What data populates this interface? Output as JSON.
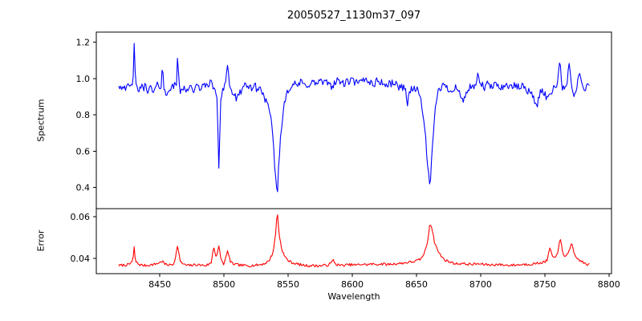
{
  "chart": {
    "title": "20050527_1130m37_097",
    "xlabel": "Wavelength",
    "background_color": "#ffffff",
    "axis_color": "#000000"
  },
  "chart_data": [
    {
      "type": "line",
      "name": "Spectrum",
      "ylabel": "Spectrum",
      "color": "#0000ff",
      "legend": "none",
      "grid": false,
      "xlim": [
        8400.5,
        8802
      ],
      "ylim": [
        0.284,
        1.256
      ],
      "xticks": [
        "8450",
        "8500",
        "8550",
        "8600",
        "8650",
        "8700",
        "8750",
        "8800"
      ],
      "yticks": [
        "0.4",
        "0.6",
        "0.8",
        "1.0",
        "1.2"
      ],
      "x_start": 8418,
      "x_end": 8785,
      "sample_step": 0.75,
      "noise": {
        "seed": 42,
        "amplitude": 0.022
      },
      "anchors": [
        [
          8418,
          0.97
        ],
        [
          8420,
          0.95
        ],
        [
          8422,
          0.97
        ],
        [
          8424,
          0.94
        ],
        [
          8426,
          0.96
        ],
        [
          8428,
          0.95
        ],
        [
          8429,
          0.97
        ],
        [
          8430,
          1.21
        ],
        [
          8431,
          0.96
        ],
        [
          8433,
          0.93
        ],
        [
          8435,
          0.96
        ],
        [
          8437,
          0.94
        ],
        [
          8439,
          0.97
        ],
        [
          8441,
          0.93
        ],
        [
          8443,
          0.95
        ],
        [
          8445,
          0.92
        ],
        [
          8447,
          0.95
        ],
        [
          8449,
          0.97
        ],
        [
          8451,
          0.95
        ],
        [
          8452,
          1.1
        ],
        [
          8453,
          0.94
        ],
        [
          8455,
          0.91
        ],
        [
          8457,
          0.95
        ],
        [
          8459,
          0.94
        ],
        [
          8461,
          0.96
        ],
        [
          8463,
          0.97
        ],
        [
          8464,
          1.17
        ],
        [
          8465,
          0.95
        ],
        [
          8467,
          0.92
        ],
        [
          8469,
          0.95
        ],
        [
          8471,
          0.94
        ],
        [
          8473,
          0.96
        ],
        [
          8475,
          0.95
        ],
        [
          8477,
          0.93
        ],
        [
          8479,
          0.96
        ],
        [
          8481,
          0.94
        ],
        [
          8483,
          0.97
        ],
        [
          8485,
          0.95
        ],
        [
          8487,
          0.97
        ],
        [
          8489,
          0.98
        ],
        [
          8491,
          0.96
        ],
        [
          8493,
          0.95
        ],
        [
          8494.5,
          0.88
        ],
        [
          8496,
          0.52
        ],
        [
          8497.5,
          0.88
        ],
        [
          8499,
          0.95
        ],
        [
          8501,
          0.97
        ],
        [
          8503,
          1.1
        ],
        [
          8504,
          0.96
        ],
        [
          8506,
          0.93
        ],
        [
          8508,
          0.91
        ],
        [
          8510,
          0.88
        ],
        [
          8512,
          0.91
        ],
        [
          8514,
          0.95
        ],
        [
          8516,
          0.96
        ],
        [
          8518,
          0.94
        ],
        [
          8520,
          0.96
        ],
        [
          8522,
          0.95
        ],
        [
          8524,
          0.96
        ],
        [
          8526,
          0.94
        ],
        [
          8528,
          0.95
        ],
        [
          8530,
          0.92
        ],
        [
          8532,
          0.89
        ],
        [
          8534,
          0.85
        ],
        [
          8536,
          0.8
        ],
        [
          8538,
          0.68
        ],
        [
          8540,
          0.48
        ],
        [
          8541.5,
          0.35
        ],
        [
          8543,
          0.58
        ],
        [
          8545,
          0.74
        ],
        [
          8547,
          0.87
        ],
        [
          8549,
          0.93
        ],
        [
          8551,
          0.95
        ],
        [
          8554,
          0.97
        ],
        [
          8557,
          0.96
        ],
        [
          8560,
          0.98
        ],
        [
          8563,
          0.96
        ],
        [
          8566,
          0.97
        ],
        [
          8569,
          0.98
        ],
        [
          8572,
          0.97
        ],
        [
          8575,
          0.99
        ],
        [
          8578,
          0.97
        ],
        [
          8581,
          0.98
        ],
        [
          8584,
          0.96
        ],
        [
          8587,
          0.98
        ],
        [
          8590,
          0.99
        ],
        [
          8593,
          0.97
        ],
        [
          8596,
          0.98
        ],
        [
          8599,
          0.99
        ],
        [
          8602,
          0.98
        ],
        [
          8605,
          0.97
        ],
        [
          8608,
          0.99
        ],
        [
          8611,
          1.0
        ],
        [
          8614,
          0.98
        ],
        [
          8617,
          0.97
        ],
        [
          8620,
          0.99
        ],
        [
          8623,
          0.98
        ],
        [
          8626,
          0.96
        ],
        [
          8629,
          0.97
        ],
        [
          8632,
          0.98
        ],
        [
          8635,
          0.96
        ],
        [
          8638,
          0.95
        ],
        [
          8641,
          0.96
        ],
        [
          8643,
          0.86
        ],
        [
          8645,
          0.94
        ],
        [
          8648,
          0.95
        ],
        [
          8651,
          0.93
        ],
        [
          8653,
          0.9
        ],
        [
          8655,
          0.82
        ],
        [
          8657,
          0.68
        ],
        [
          8659,
          0.5
        ],
        [
          8660.5,
          0.4
        ],
        [
          8662,
          0.56
        ],
        [
          8664,
          0.77
        ],
        [
          8666,
          0.91
        ],
        [
          8668,
          0.95
        ],
        [
          8671,
          0.96
        ],
        [
          8674,
          0.95
        ],
        [
          8677,
          0.93
        ],
        [
          8680,
          0.96
        ],
        [
          8683,
          0.93
        ],
        [
          8686,
          0.87
        ],
        [
          8689,
          0.93
        ],
        [
          8692,
          0.95
        ],
        [
          8695,
          0.94
        ],
        [
          8698,
          1.02
        ],
        [
          8700,
          0.97
        ],
        [
          8703,
          0.95
        ],
        [
          8706,
          0.97
        ],
        [
          8709,
          0.95
        ],
        [
          8712,
          0.97
        ],
        [
          8715,
          0.96
        ],
        [
          8718,
          0.95
        ],
        [
          8721,
          0.97
        ],
        [
          8724,
          0.95
        ],
        [
          8727,
          0.96
        ],
        [
          8730,
          0.95
        ],
        [
          8733,
          0.96
        ],
        [
          8736,
          0.94
        ],
        [
          8739,
          0.92
        ],
        [
          8742,
          0.88
        ],
        [
          8744,
          0.85
        ],
        [
          8746,
          0.91
        ],
        [
          8748,
          0.94
        ],
        [
          8750,
          0.92
        ],
        [
          8752,
          0.88
        ],
        [
          8754,
          0.92
        ],
        [
          8756,
          0.94
        ],
        [
          8758,
          0.96
        ],
        [
          8760,
          0.98
        ],
        [
          8762,
          1.13
        ],
        [
          8763,
          0.97
        ],
        [
          8765,
          0.93
        ],
        [
          8767,
          0.95
        ],
        [
          8769,
          1.1
        ],
        [
          8771,
          0.94
        ],
        [
          8773,
          0.91
        ],
        [
          8775,
          0.93
        ],
        [
          8777,
          1.06
        ],
        [
          8779,
          0.95
        ],
        [
          8781,
          0.93
        ],
        [
          8783,
          0.96
        ],
        [
          8785,
          0.95
        ]
      ]
    },
    {
      "type": "line",
      "name": "Error",
      "ylabel": "Error",
      "color": "#ff0000",
      "legend": "none",
      "grid": false,
      "xlim": [
        8400.5,
        8802
      ],
      "ylim": [
        0.0327,
        0.0638
      ],
      "xticks": [
        "8450",
        "8500",
        "8550",
        "8600",
        "8650",
        "8700",
        "8750",
        "8800"
      ],
      "yticks": [
        "0.04",
        "0.06"
      ],
      "x_start": 8418,
      "x_end": 8785,
      "sample_step": 0.75,
      "noise": {
        "seed": 7,
        "amplitude": 0.0006
      },
      "anchors": [
        [
          8418,
          0.0366
        ],
        [
          8422,
          0.0368
        ],
        [
          8426,
          0.037
        ],
        [
          8429,
          0.039
        ],
        [
          8430,
          0.0452
        ],
        [
          8431,
          0.0385
        ],
        [
          8434,
          0.037
        ],
        [
          8438,
          0.0366
        ],
        [
          8442,
          0.0368
        ],
        [
          8446,
          0.0372
        ],
        [
          8450,
          0.038
        ],
        [
          8452,
          0.0388
        ],
        [
          8454,
          0.0372
        ],
        [
          8458,
          0.0368
        ],
        [
          8461,
          0.0374
        ],
        [
          8464,
          0.0462
        ],
        [
          8466,
          0.0382
        ],
        [
          8470,
          0.0368
        ],
        [
          8474,
          0.0366
        ],
        [
          8478,
          0.037
        ],
        [
          8482,
          0.0368
        ],
        [
          8486,
          0.0366
        ],
        [
          8490,
          0.0378
        ],
        [
          8492,
          0.0458
        ],
        [
          8494,
          0.0405
        ],
        [
          8496,
          0.0455
        ],
        [
          8498,
          0.039
        ],
        [
          8500,
          0.0372
        ],
        [
          8503,
          0.0438
        ],
        [
          8505,
          0.0382
        ],
        [
          8508,
          0.0372
        ],
        [
          8512,
          0.0368
        ],
        [
          8516,
          0.0366
        ],
        [
          8520,
          0.0365
        ],
        [
          8524,
          0.0367
        ],
        [
          8528,
          0.037
        ],
        [
          8532,
          0.0376
        ],
        [
          8535,
          0.0388
        ],
        [
          8538,
          0.0425
        ],
        [
          8540,
          0.05
        ],
        [
          8541.5,
          0.0628
        ],
        [
          8543,
          0.0512
        ],
        [
          8545,
          0.0445
        ],
        [
          8547,
          0.0412
        ],
        [
          8550,
          0.039
        ],
        [
          8553,
          0.038
        ],
        [
          8557,
          0.0373
        ],
        [
          8561,
          0.0368
        ],
        [
          8565,
          0.0365
        ],
        [
          8569,
          0.0366
        ],
        [
          8573,
          0.0364
        ],
        [
          8577,
          0.0366
        ],
        [
          8581,
          0.0368
        ],
        [
          8584,
          0.038
        ],
        [
          8585,
          0.0395
        ],
        [
          8587,
          0.0372
        ],
        [
          8591,
          0.0366
        ],
        [
          8595,
          0.0368
        ],
        [
          8599,
          0.037
        ],
        [
          8603,
          0.0368
        ],
        [
          8607,
          0.0372
        ],
        [
          8611,
          0.037
        ],
        [
          8615,
          0.0373
        ],
        [
          8619,
          0.0371
        ],
        [
          8623,
          0.0374
        ],
        [
          8627,
          0.0371
        ],
        [
          8631,
          0.0373
        ],
        [
          8635,
          0.0375
        ],
        [
          8639,
          0.0377
        ],
        [
          8643,
          0.0381
        ],
        [
          8647,
          0.0384
        ],
        [
          8651,
          0.039
        ],
        [
          8654,
          0.04
        ],
        [
          8657,
          0.0438
        ],
        [
          8659,
          0.049
        ],
        [
          8660.5,
          0.0572
        ],
        [
          8662,
          0.0548
        ],
        [
          8664,
          0.048
        ],
        [
          8667,
          0.0432
        ],
        [
          8670,
          0.0405
        ],
        [
          8673,
          0.039
        ],
        [
          8677,
          0.0381
        ],
        [
          8681,
          0.0374
        ],
        [
          8685,
          0.0376
        ],
        [
          8689,
          0.0373
        ],
        [
          8693,
          0.0371
        ],
        [
          8697,
          0.0374
        ],
        [
          8701,
          0.0372
        ],
        [
          8705,
          0.037
        ],
        [
          8709,
          0.0369
        ],
        [
          8713,
          0.0371
        ],
        [
          8717,
          0.0369
        ],
        [
          8721,
          0.0367
        ],
        [
          8725,
          0.0368
        ],
        [
          8729,
          0.0369
        ],
        [
          8733,
          0.0371
        ],
        [
          8737,
          0.0372
        ],
        [
          8741,
          0.0374
        ],
        [
          8745,
          0.0377
        ],
        [
          8749,
          0.0382
        ],
        [
          8752,
          0.039
        ],
        [
          8754,
          0.0452
        ],
        [
          8756,
          0.0408
        ],
        [
          8758,
          0.0398
        ],
        [
          8760,
          0.0425
        ],
        [
          8762,
          0.0505
        ],
        [
          8764,
          0.042
        ],
        [
          8766,
          0.0405
        ],
        [
          8769,
          0.044
        ],
        [
          8771,
          0.0472
        ],
        [
          8773,
          0.0415
        ],
        [
          8776,
          0.0395
        ],
        [
          8779,
          0.0385
        ],
        [
          8782,
          0.0372
        ],
        [
          8785,
          0.037
        ]
      ]
    }
  ]
}
